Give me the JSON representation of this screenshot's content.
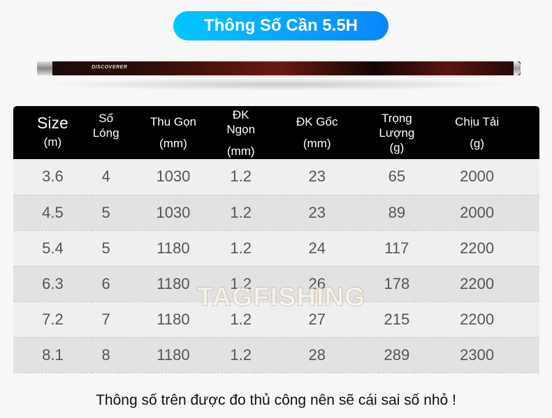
{
  "title": "Thông Số Cần 5.5H",
  "rod_brand": "DISCOVERER",
  "watermark": "TAGFISHING",
  "headers": [
    {
      "l1": "Size",
      "l2": "(m)"
    },
    {
      "l1": "Số",
      "l2": "Lóng"
    },
    {
      "l1": "Thu Gọn",
      "l2": "(mm)"
    },
    {
      "l1": "ĐK Ngọn",
      "l2": "(mm)"
    },
    {
      "l1": "ĐK Gốc",
      "l2": "(mm)"
    },
    {
      "l1": "Trọng",
      "l2": "Lượng",
      "l3": "(g)"
    },
    {
      "l1": "Chịu Tải",
      "l2": "(g)"
    }
  ],
  "rows": [
    [
      "3.6",
      "4",
      "1030",
      "1.2",
      "23",
      "65",
      "2000"
    ],
    [
      "4.5",
      "5",
      "1030",
      "1.2",
      "23",
      "89",
      "2000"
    ],
    [
      "5.4",
      "5",
      "1180",
      "1.2",
      "24",
      "117",
      "2200"
    ],
    [
      "6.3",
      "6",
      "1180",
      "1.2",
      "26",
      "178",
      "2200"
    ],
    [
      "7.2",
      "7",
      "1180",
      "1.2",
      "27",
      "215",
      "2200"
    ],
    [
      "8.1",
      "8",
      "1180",
      "1.2",
      "28",
      "289",
      "2300"
    ]
  ],
  "note": "Thông số trên được đo thủ công nên sẽ cái sai số nhỏ !"
}
